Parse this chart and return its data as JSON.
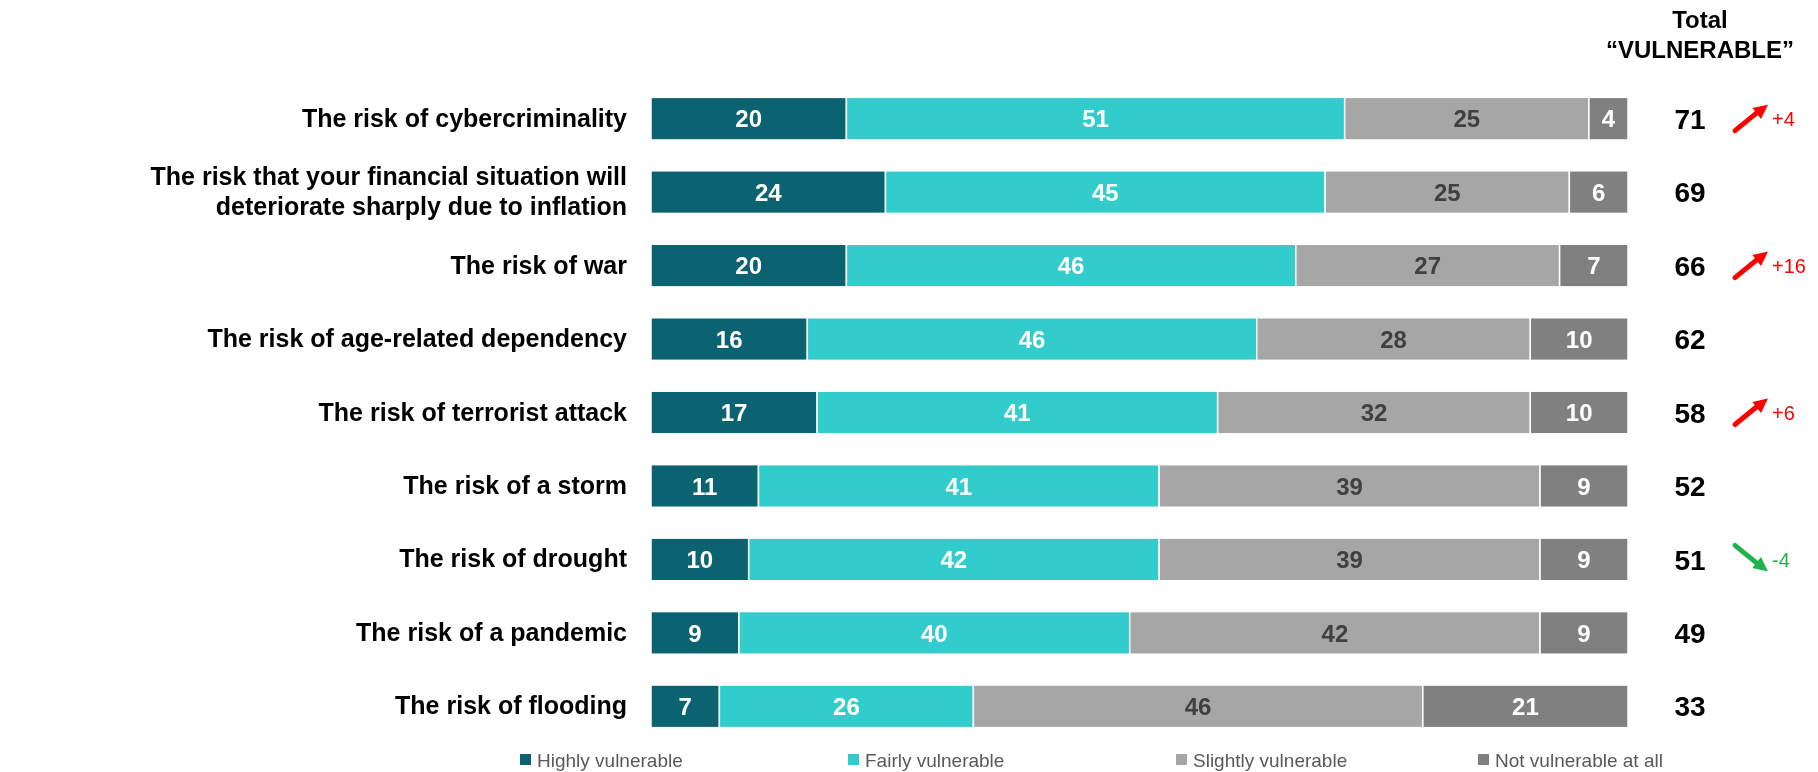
{
  "chart_data": {
    "type": "bar",
    "orientation": "horizontal",
    "stacked": true,
    "data_labels": true,
    "legend": "bottom",
    "categories": [
      "The risk of cybercriminality",
      "The risk that your financial situation will deteriorate sharply due to inflation",
      "The risk of war",
      "The risk of age-related dependency",
      "The risk of terrorist attack",
      "The risk of a storm",
      "The risk of drought",
      "The risk of a pandemic",
      "The risk of flooding"
    ],
    "series": [
      {
        "name": "Highly vulnerable",
        "color": "#0b6371",
        "values": [
          20,
          24,
          20,
          16,
          17,
          11,
          10,
          9,
          7
        ]
      },
      {
        "name": "Fairly vulnerable",
        "color": "#33cccc",
        "values": [
          51,
          45,
          46,
          46,
          41,
          41,
          42,
          40,
          26
        ]
      },
      {
        "name": "Slightly vulnerable",
        "color": "#a6a6a6",
        "values": [
          25,
          25,
          27,
          28,
          32,
          39,
          39,
          42,
          46
        ]
      },
      {
        "name": "Not vulnerable at all",
        "color": "#808080",
        "values": [
          4,
          6,
          7,
          10,
          10,
          9,
          9,
          9,
          21
        ]
      }
    ],
    "annotations": [
      "Total “VULNERABLE”",
      "71",
      "69",
      "66",
      "62",
      "58",
      "52",
      "51",
      "49",
      "33",
      "+4",
      "+16",
      "+6",
      "-4"
    ]
  }
}
